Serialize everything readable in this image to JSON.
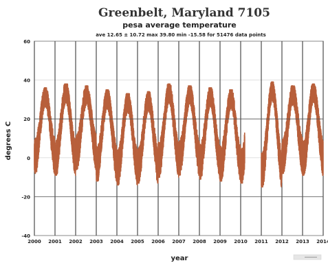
{
  "chart_data": {
    "type": "scatter",
    "title": "Greenbelt, Maryland 7105",
    "subtitle": "pesa average temperature",
    "stats_line": "ave 12.65 ± 10.72 max 39.80 min -15.58 for 51476 data points",
    "xlabel": "year",
    "ylabel": "degrees C",
    "x_tick_labels": [
      "2000",
      "2001",
      "2002",
      "2003",
      "2004",
      "2005",
      "2006",
      "2007",
      "2008",
      "2009",
      "2010",
      "2011",
      "2012",
      "2013",
      "2014"
    ],
    "y_tick_labels": [
      "-40",
      "-20",
      "0",
      "20",
      "40",
      "60"
    ],
    "xlim": [
      2000,
      2014
    ],
    "ylim": [
      -40,
      60
    ],
    "horizontal_reference_lines": [
      20,
      -20
    ],
    "mean": 12.65,
    "std": 10.72,
    "max": 39.8,
    "min": -15.58,
    "points": 51476,
    "series": [
      {
        "color": "#b8603c",
        "yearly_summer_max": [
          36,
          38,
          37,
          35,
          33,
          34,
          38,
          37,
          36,
          35,
          36,
          39,
          37,
          38
        ],
        "yearly_winter_min": [
          -8,
          -9,
          -6,
          -12,
          -14,
          -13,
          -10,
          -9,
          -11,
          -12,
          -13,
          -15,
          -8,
          -9
        ],
        "gap_ranges": [
          [
            2010.2,
            2011.0
          ]
        ]
      }
    ]
  },
  "legend_stub": "chart legend"
}
